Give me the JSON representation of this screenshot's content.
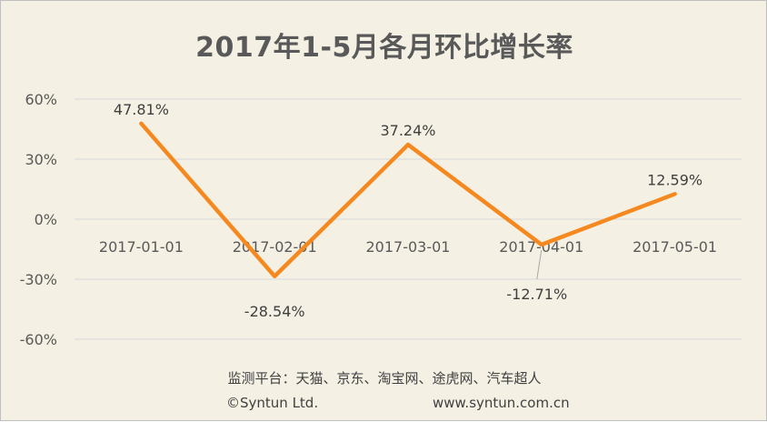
{
  "chart_data": {
    "type": "line",
    "title": "2017年1-5月各月环比增长率",
    "categories": [
      "2017-01-01",
      "2017-02-01",
      "2017-03-01",
      "2017-04-01",
      "2017-05-01"
    ],
    "series": [
      {
        "values": [
          47.81,
          -28.54,
          37.24,
          -12.71,
          12.59
        ],
        "color": "#f5891f"
      }
    ],
    "data_labels": [
      "47.81%",
      "-28.54%",
      "37.24%",
      "-12.71%",
      "12.59%"
    ],
    "yticks": [
      60,
      30,
      0,
      -30,
      -60
    ],
    "ytick_labels": [
      "60%",
      "30%",
      "0%",
      "-30%",
      "-60%"
    ],
    "ylim": [
      -60,
      60
    ],
    "grid": true,
    "legend": "none"
  },
  "footer": {
    "platforms": "监测平台：天猫、京东、淘宝网、途虎网、汽车超人",
    "copyright": "©Syntun Ltd.",
    "website": "www.syntun.com.cn"
  },
  "colors": {
    "background": "#f4f0e3",
    "line": "#f5891f",
    "grid": "#d9d9d9"
  }
}
